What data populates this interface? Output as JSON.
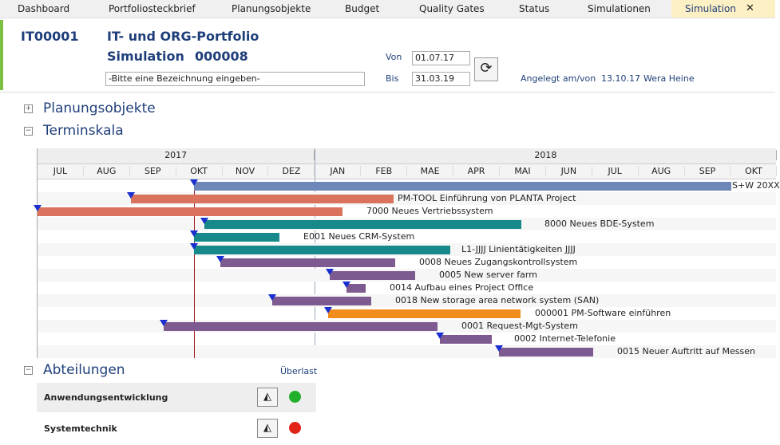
{
  "tabs": [
    "Dashboard",
    "Portfoliosteckbrief",
    "Planungsobjekte",
    "Budget",
    "Quality Gates",
    "Status",
    "Simulationen",
    "Simulation"
  ],
  "close": "✕",
  "header": {
    "id": "IT00001",
    "portfolio": "IT- und ORG-Portfolio",
    "simulation_label": "Simulation",
    "simulation_number": "000008",
    "description": "-Bitte eine Bezeichnung eingeben-",
    "von_label": "Von",
    "von_value": "01.07.17",
    "bis_label": "Bis",
    "bis_value": "31.03.19",
    "created_label": "Angelegt am/von",
    "created_date": "13.10.17",
    "created_by": "Wera Heine"
  },
  "sections": {
    "planungsobjekte": "Planungsobjekte",
    "terminskala": "Terminskala",
    "abteilungen": "Abteilungen"
  },
  "timeline": {
    "years": [
      "2017",
      "2018"
    ],
    "months": [
      "JUL",
      "AUG",
      "SEP",
      "OKT",
      "NOV",
      "DEZ",
      "JAN",
      "FEB",
      "MAE",
      "APR",
      "MAI",
      "JUN",
      "JUL",
      "AUG",
      "SEP",
      "OKT"
    ],
    "bars": [
      {
        "label": "S+W 20XX",
        "color": "#6f86b8"
      },
      {
        "label": "PM-TOOL Einführung von PLANTA Project",
        "color": "#d9735d"
      },
      {
        "label": "7000 Neues Vertriebssystem",
        "color": "#d9735d"
      },
      {
        "label": "8000 Neues BDE-System",
        "color": "#17898a"
      },
      {
        "label": "E001 Neues CRM-System",
        "color": "#17898a"
      },
      {
        "label": "L1-JJJJ Linientätigkeiten JJJJ",
        "color": "#17898a"
      },
      {
        "label": "0008 Neues Zugangskontrollsystem",
        "color": "#7d5a8f"
      },
      {
        "label": "0005 New server farm",
        "color": "#7d5a8f"
      },
      {
        "label": "0014 Aufbau eines Project Office",
        "color": "#7d5a8f"
      },
      {
        "label": "0018 New storage area network system (SAN)",
        "color": "#7d5a8f"
      },
      {
        "label": "000001 PM-Software einführen",
        "color": "#f28c1c"
      },
      {
        "label": "0001 Request-Mgt-System",
        "color": "#7d5a8f"
      },
      {
        "label": "0002 Internet-Telefonie",
        "color": "#7d5a8f"
      },
      {
        "label": "0015 Neuer Auftritt auf Messen",
        "color": "#7d5a8f"
      }
    ]
  },
  "abteilungen": {
    "overload_label": "Überlast",
    "rows": [
      {
        "name": "Anwendungsentwicklung",
        "status_color": "#22b02a"
      },
      {
        "name": "Systemtechnik",
        "status_color": "#e2231a"
      }
    ]
  }
}
